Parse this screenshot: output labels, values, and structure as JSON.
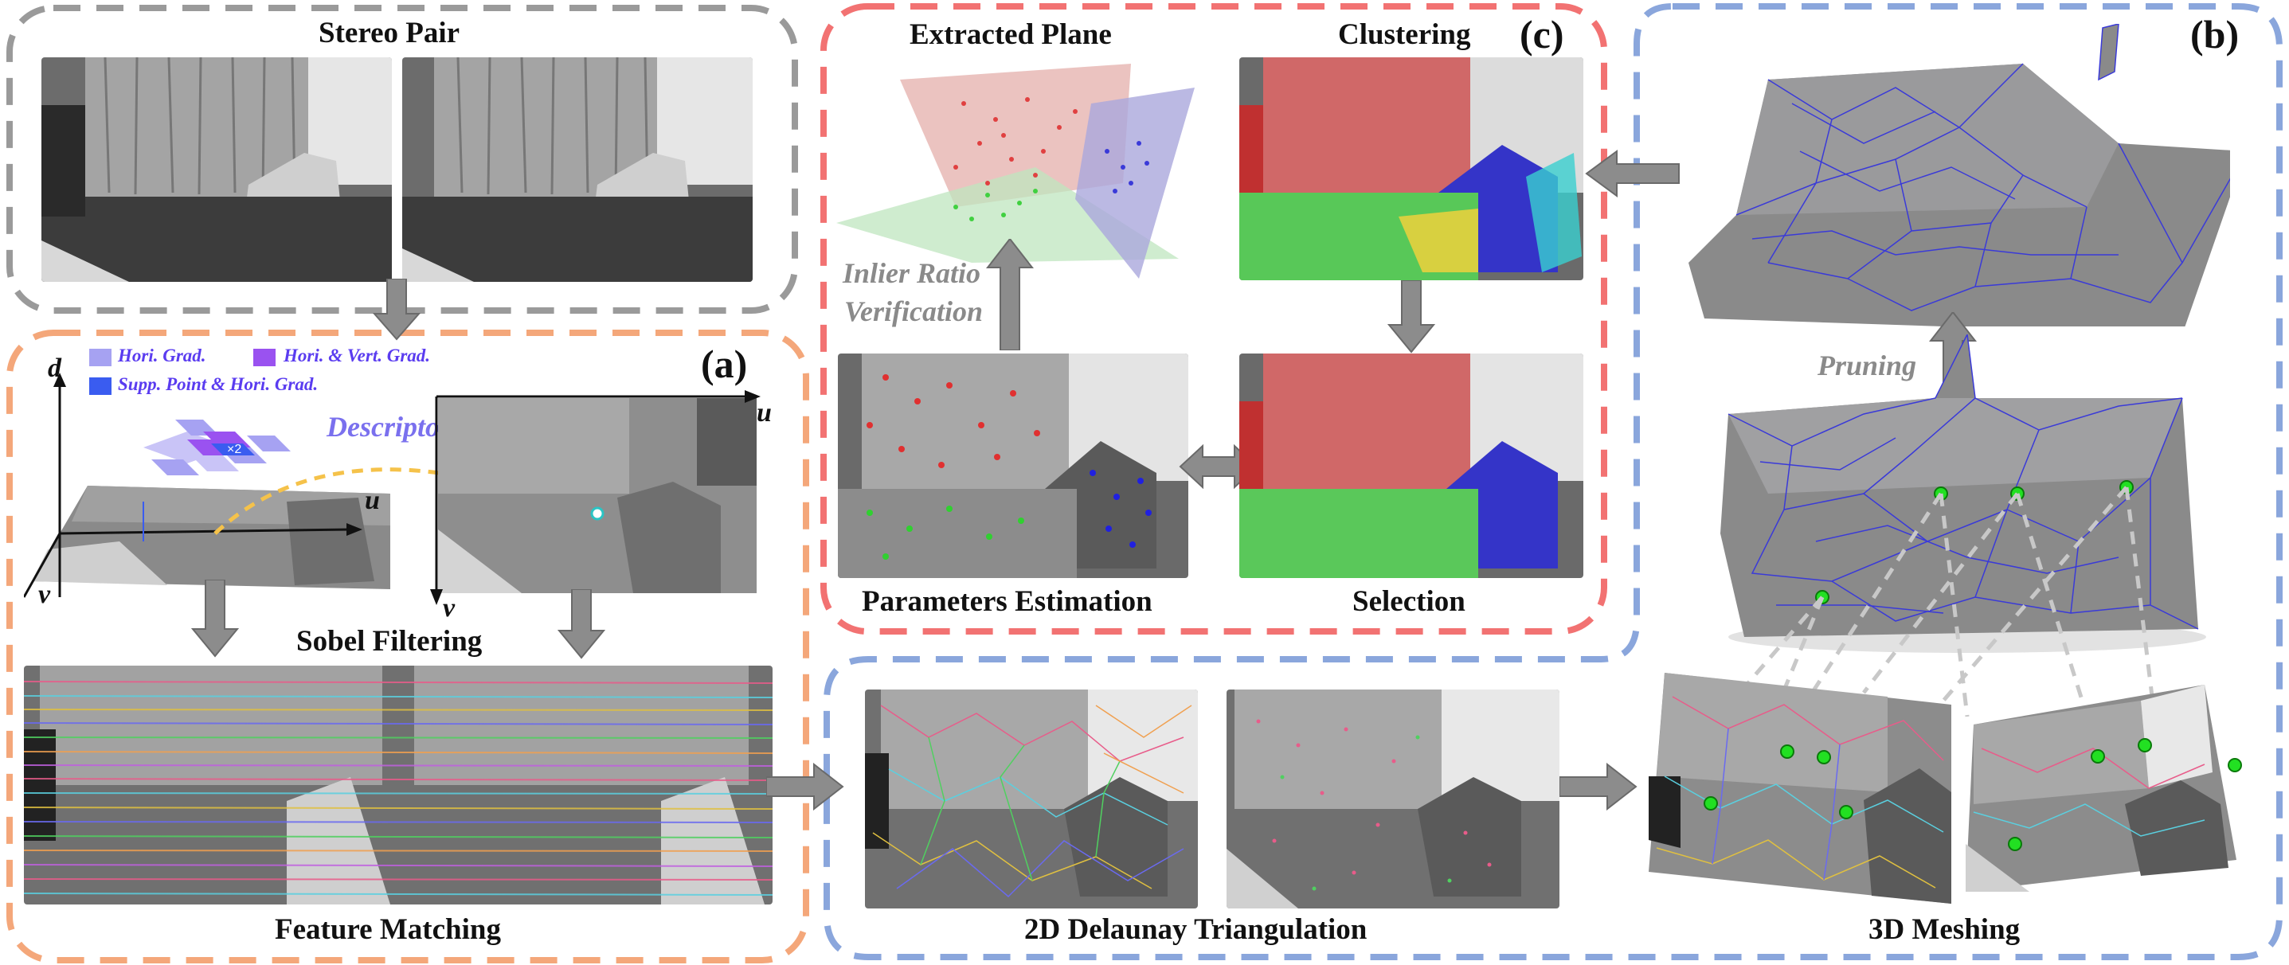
{
  "panels": {
    "stereo_pair": {
      "title": "Stereo Pair"
    },
    "a": {
      "tag": "(a)",
      "sobel": "Sobel Filtering",
      "matching": "Feature Matching",
      "descriptor": "Descriptor",
      "axis_u": "u",
      "axis_v": "v",
      "axis_d": "d",
      "legend": [
        "Hori. Grad.",
        "Hori. & Vert. Grad.",
        "Supp. Point & Hori. Grad."
      ],
      "multiplier": "×2"
    },
    "c": {
      "tag": "(c)",
      "extracted": "Extracted Plane",
      "clustering": "Clustering",
      "inlier": "Inlier Ratio",
      "verification": "Verification",
      "params": "Parameters Estimation",
      "selection": "Selection"
    },
    "b": {
      "tag": "(b)",
      "pruning": "Pruning",
      "delaunay": "2D Delaunay Triangulation",
      "meshing": "3D Meshing"
    }
  },
  "colors": {
    "gray_frame": "#9a9a9a",
    "orange_frame": "#f4a77a",
    "red_frame": "#f27272",
    "blue_frame": "#8aa6dc",
    "arrow": "#8c8c8c",
    "mesh_blue": "#3a3ad8",
    "plane_red": "#e07a7a",
    "plane_green": "#8fd88f",
    "plane_purple": "#8e8ed4",
    "legend_hori": "#a6a2f2",
    "legend_both": "#9a52f0",
    "legend_supp": "#3a5cf0"
  },
  "icons": [
    "arrow-down",
    "arrow-right",
    "arrow-left",
    "arrow-up",
    "double-arrow"
  ]
}
